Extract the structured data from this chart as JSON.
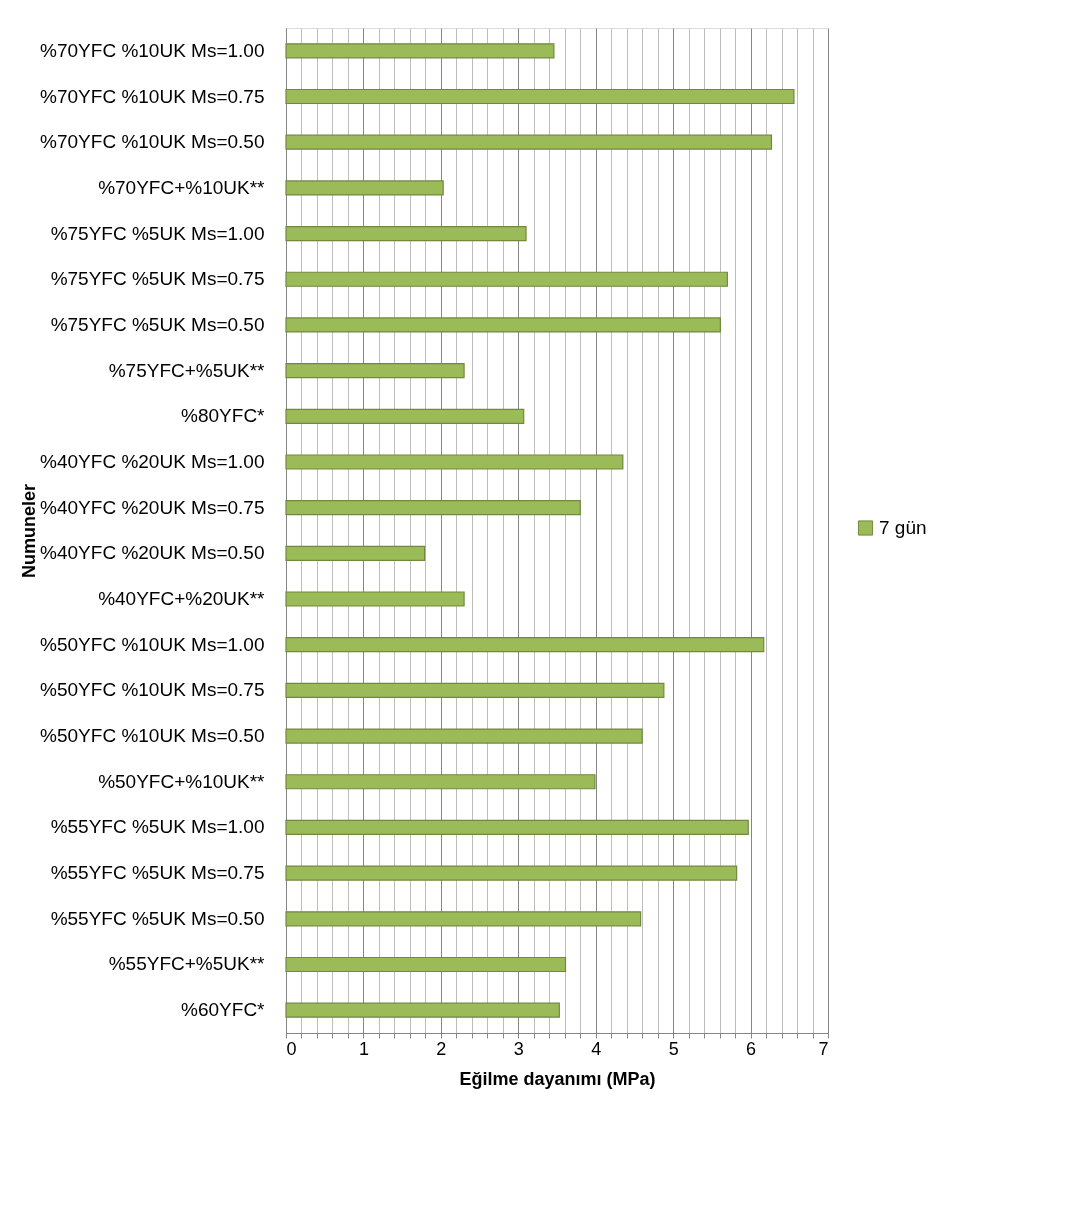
{
  "chart_data": {
    "type": "bar",
    "orientation": "horizontal",
    "xlabel": "Eğilme dayanımı (MPa)",
    "ylabel": "Numuneler",
    "categories": [
      "%70YFC %10UK Ms=1.00",
      "%70YFC %10UK Ms=0.75",
      "%70YFC %10UK Ms=0.50",
      "%70YFC+%10UK**",
      "%75YFC %5UK Ms=1.00",
      "%75YFC %5UK Ms=0.75",
      "%75YFC %5UK Ms=0.50",
      "%75YFC+%5UK**",
      "%80YFC*",
      "%40YFC %20UK Ms=1.00",
      "%40YFC %20UK Ms=0.75",
      "%40YFC %20UK Ms=0.50",
      "%40YFC+%20UK**",
      "%50YFC %10UK Ms=1.00",
      "%50YFC %10UK Ms=0.75",
      "%50YFC %10UK Ms=0.50",
      "%50YFC+%10UK**",
      "%55YFC %5UK Ms=1.00",
      "%55YFC %5UK Ms=0.75",
      "%55YFC %5UK Ms=0.50",
      "%55YFC+%5UK**",
      "%60YFC*"
    ],
    "series": [
      {
        "name": "7 gün",
        "color": "#9bbb59",
        "values": [
          3.46,
          6.56,
          6.27,
          2.03,
          3.1,
          5.7,
          5.61,
          2.3,
          3.07,
          4.35,
          3.8,
          1.79,
          2.3,
          6.17,
          4.88,
          4.6,
          3.99,
          5.97,
          5.82,
          4.58,
          3.61,
          3.53
        ]
      }
    ],
    "xlim": [
      0,
      7
    ],
    "xticks": [
      0,
      {
        "value": 0.2,
        "label": null
      },
      {
        "value": 0.4,
        "label": null
      },
      {
        "value": 0.6,
        "label": null
      },
      {
        "value": 0.8,
        "label": null
      },
      1,
      {
        "value": 1.2,
        "label": null
      },
      {
        "value": 1.4,
        "label": null
      },
      {
        "value": 1.6,
        "label": null
      },
      {
        "value": 1.8,
        "label": null
      },
      2,
      {
        "value": 2.2,
        "label": null
      },
      {
        "value": 2.4,
        "label": null
      },
      {
        "value": 2.6,
        "label": null
      },
      {
        "value": 2.8,
        "label": null
      },
      3,
      {
        "value": 3.2,
        "label": null
      },
      {
        "value": 3.4,
        "label": null
      },
      {
        "value": 3.6,
        "label": null
      },
      {
        "value": 3.8,
        "label": null
      },
      4,
      {
        "value": 4.2,
        "label": null
      },
      {
        "value": 4.4,
        "label": null
      },
      {
        "value": 4.6,
        "label": null
      },
      {
        "value": 4.8,
        "label": null
      },
      5,
      {
        "value": 5.2,
        "label": null
      },
      {
        "value": 5.4,
        "label": null
      },
      {
        "value": 5.6,
        "label": null
      },
      {
        "value": 5.8,
        "label": null
      },
      6,
      {
        "value": 6.2,
        "label": null
      },
      {
        "value": 6.4,
        "label": null
      },
      {
        "value": 6.6,
        "label": null
      },
      {
        "value": 6.8,
        "label": null
      },
      7
    ],
    "grid": "x",
    "legend": "right"
  }
}
